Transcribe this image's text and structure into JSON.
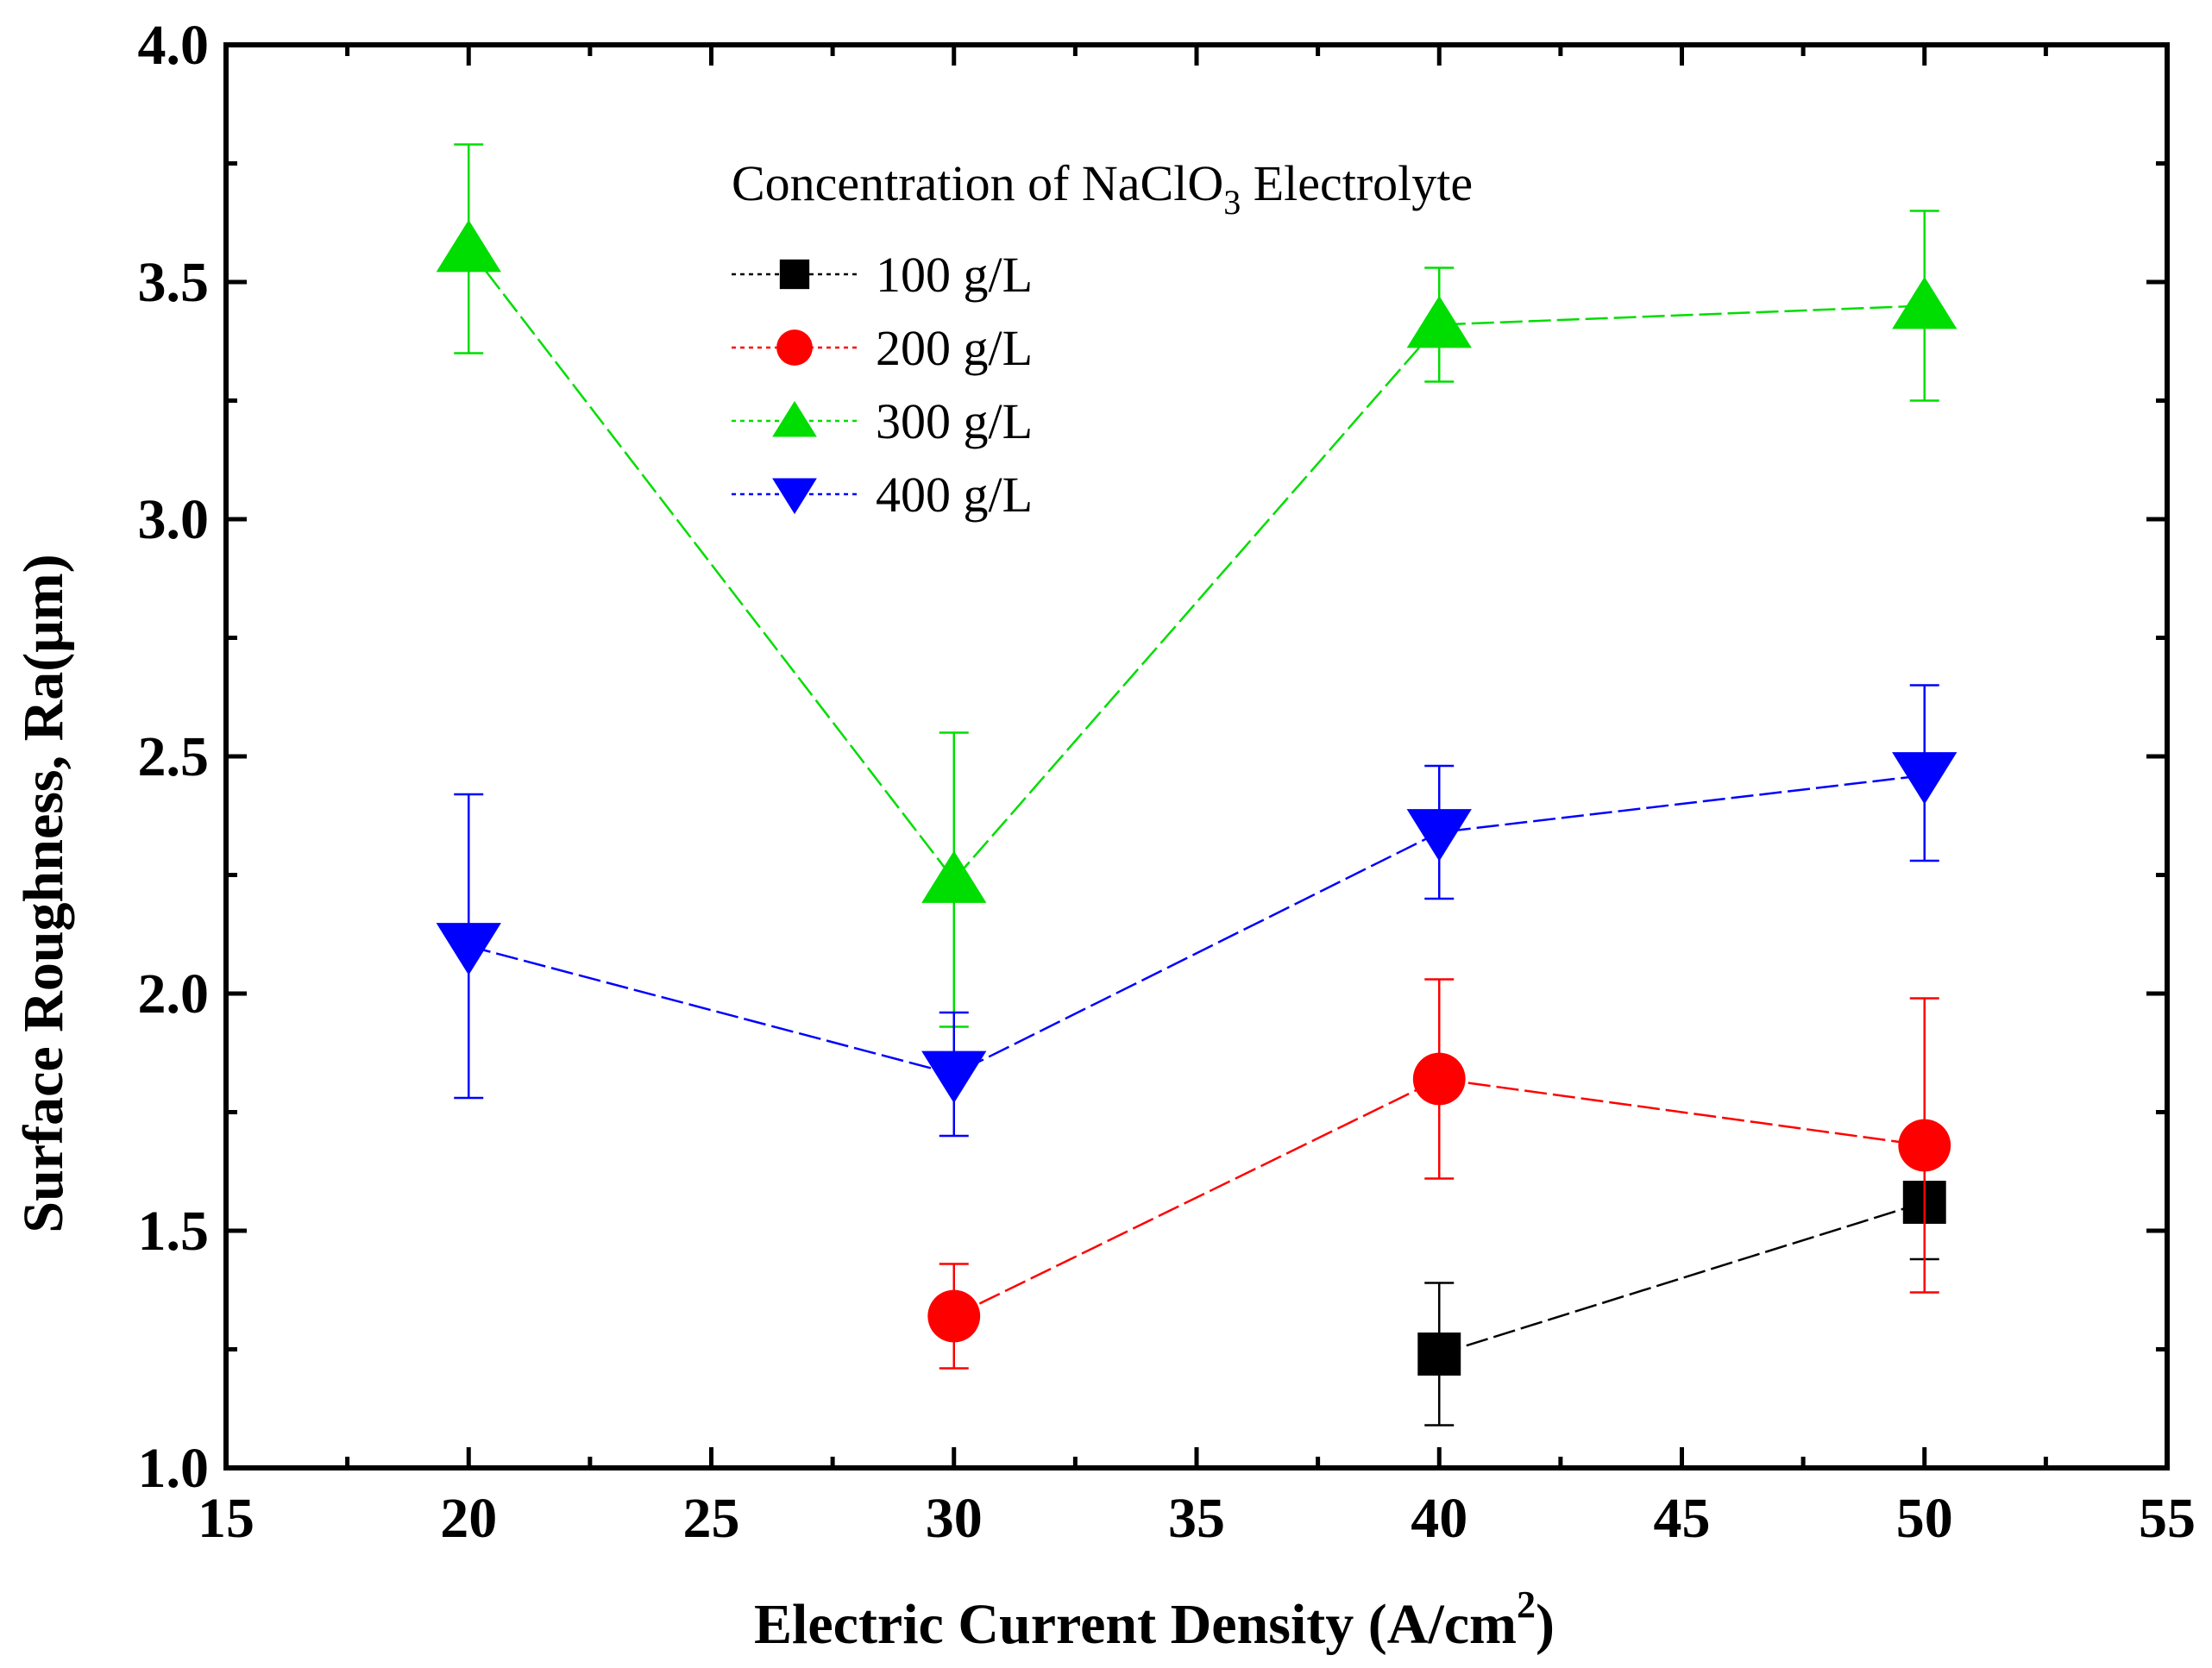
{
  "chart_data": {
    "type": "line",
    "xlabel": "Electric Current Density (A/cm",
    "xlabel_sup": "2",
    "xlabel_end": ")",
    "ylabel": "Surface Roughness, Ra(μm)",
    "xlim": [
      15,
      55
    ],
    "ylim": [
      1.0,
      4.0
    ],
    "x_ticks": [
      15,
      20,
      25,
      30,
      35,
      40,
      45,
      50,
      55
    ],
    "y_ticks": [
      "1.0",
      "1.5",
      "2.0",
      "2.5",
      "3.0",
      "3.5",
      "4.0"
    ],
    "legend_title": "Concentration of NaClO",
    "legend_title_sub": "3",
    "legend_title_end": " Electrolyte",
    "legend_position": "top-center",
    "series": [
      {
        "name": "100 g/L",
        "color": "#000000",
        "marker": "square",
        "x": [
          40,
          50
        ],
        "y": [
          1.24,
          1.56
        ],
        "err_low": [
          1.09,
          1.44
        ],
        "err_high": [
          1.39,
          1.68
        ]
      },
      {
        "name": "200 g/L",
        "color": "#ff0000",
        "marker": "circle",
        "x": [
          30,
          40,
          50
        ],
        "y": [
          1.32,
          1.82,
          1.68
        ],
        "err_low": [
          1.21,
          1.61,
          1.37
        ],
        "err_high": [
          1.43,
          2.03,
          1.99
        ]
      },
      {
        "name": "300 g/L",
        "color": "#00dd00",
        "marker": "triangle-up",
        "x": [
          20,
          30,
          40,
          50
        ],
        "y": [
          3.57,
          2.24,
          3.41,
          3.45
        ],
        "err_low": [
          3.35,
          1.93,
          3.29,
          3.25
        ],
        "err_high": [
          3.79,
          2.55,
          3.53,
          3.65
        ]
      },
      {
        "name": "400 g/L",
        "color": "#0000ff",
        "marker": "triangle-down",
        "x": [
          20,
          30,
          40,
          50
        ],
        "y": [
          2.1,
          1.83,
          2.34,
          2.46
        ],
        "err_low": [
          1.78,
          1.7,
          2.2,
          2.28
        ],
        "err_high": [
          2.42,
          1.96,
          2.48,
          2.65
        ]
      }
    ]
  }
}
